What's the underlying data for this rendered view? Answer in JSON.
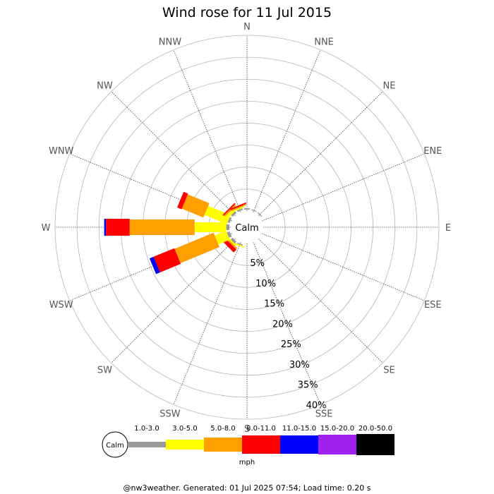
{
  "chart_data": {
    "type": "wind-rose",
    "title": "Wind rose for 11 Jul 2015",
    "directions": [
      "N",
      "NNE",
      "NE",
      "ENE",
      "E",
      "ESE",
      "SE",
      "SSE",
      "S",
      "SSW",
      "SW",
      "WSW",
      "W",
      "WNW",
      "NW",
      "NNW"
    ],
    "radial_max_percent": 40,
    "radial_ticks": [
      5,
      10,
      15,
      20,
      25,
      30,
      35,
      40
    ],
    "radial_tick_labels": [
      "5%",
      "10%",
      "15%",
      "20%",
      "25%",
      "30%",
      "35%",
      "40%"
    ],
    "calm_label": "Calm",
    "speed_unit": "mph",
    "speed_bins": [
      {
        "label": "1.0-3.0",
        "color": "#999999"
      },
      {
        "label": "3.0-5.0",
        "color": "#ffff00"
      },
      {
        "label": "5.0-8.0",
        "color": "#ff9f00"
      },
      {
        "label": "8.0-11.0",
        "color": "#ff0000"
      },
      {
        "label": "11.0-15.0",
        "color": "#0000ff"
      },
      {
        "label": "15.0-20.0",
        "color": "#a020f0"
      },
      {
        "label": "20.0-50.0",
        "color": "#000000"
      }
    ],
    "frequencies_percent": {
      "N": [
        0.3,
        0,
        0,
        0,
        0,
        0,
        0
      ],
      "NNE": [
        0.2,
        0,
        0,
        0,
        0,
        0,
        0
      ],
      "NE": [
        0.2,
        0,
        0,
        0,
        0,
        0,
        0
      ],
      "ENE": [
        0,
        0,
        0,
        0,
        0,
        0,
        0
      ],
      "E": [
        0,
        0,
        0,
        0,
        0,
        0,
        0
      ],
      "ESE": [
        0,
        0,
        0,
        0,
        0,
        0,
        0
      ],
      "SE": [
        0,
        0,
        0,
        0,
        0,
        0,
        0
      ],
      "SSE": [
        0,
        0,
        0,
        0,
        0,
        0,
        0
      ],
      "S": [
        0,
        0,
        0,
        0,
        0,
        0,
        0
      ],
      "SSW": [
        0.3,
        0.3,
        0,
        0,
        0,
        0,
        0
      ],
      "SW": [
        0.6,
        0.3,
        0.4,
        0.9,
        0,
        0,
        0
      ],
      "WSW": [
        0.7,
        2.8,
        9.6,
        5.1,
        1.0,
        0,
        0
      ],
      "W": [
        0.7,
        7.2,
        14.8,
        5.4,
        0.4,
        0,
        0
      ],
      "WNW": [
        0.5,
        5.5,
        5.3,
        1.1,
        0,
        0,
        0
      ],
      "NW": [
        0.5,
        0.7,
        0.4,
        0.3,
        0,
        0,
        0
      ],
      "NNW": [
        0.4,
        0.3,
        0.3,
        0.3,
        0,
        0,
        0
      ]
    }
  },
  "footer_text": "@nw3weather. Generated: 01 Jul 2025 07:54; Load time: 0.20 s"
}
